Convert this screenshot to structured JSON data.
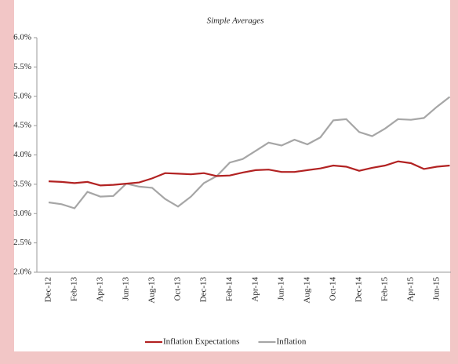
{
  "chart_data": {
    "type": "line",
    "subtitle": "Simple Averages",
    "categories": [
      "Dec-12",
      null,
      "Feb-13",
      null,
      "Apr-13",
      null,
      "Jun-13",
      null,
      "Aug-13",
      null,
      "Oct-13",
      null,
      "Dec-13",
      null,
      "Feb-14",
      null,
      "Apr-14",
      null,
      "Jun-14",
      null,
      "Aug-14",
      null,
      "Oct-14",
      null,
      "Dec-14",
      null,
      "Feb-15",
      null,
      "Apr-15",
      null,
      "Jun-15",
      null
    ],
    "series": [
      {
        "name": "Inflation Expectations",
        "color": "#b22222",
        "values": [
          3.55,
          3.54,
          3.52,
          3.54,
          3.48,
          3.49,
          3.51,
          3.53,
          3.6,
          3.69,
          3.68,
          3.67,
          3.69,
          3.64,
          3.65,
          3.7,
          3.74,
          3.75,
          3.71,
          3.71,
          3.74,
          3.77,
          3.82,
          3.8,
          3.73,
          3.78,
          3.82,
          3.89,
          3.86,
          3.76,
          3.8,
          3.82
        ]
      },
      {
        "name": "Inflation",
        "color": "#a6a6a6",
        "values": [
          3.19,
          3.16,
          3.09,
          3.37,
          3.29,
          3.3,
          3.51,
          3.46,
          3.44,
          3.25,
          3.12,
          3.29,
          3.52,
          3.64,
          3.87,
          3.93,
          4.07,
          4.21,
          4.16,
          4.26,
          4.18,
          4.3,
          4.59,
          4.61,
          4.39,
          4.32,
          4.45,
          4.61,
          4.6,
          4.63,
          4.82,
          4.99
        ]
      }
    ],
    "ylim": [
      2.0,
      6.0
    ],
    "yticks": [
      {
        "value": 2.0,
        "label": "2.0%"
      },
      {
        "value": 2.5,
        "label": "2.5%"
      },
      {
        "value": 3.0,
        "label": "3.0%"
      },
      {
        "value": 3.5,
        "label": "3.5%"
      },
      {
        "value": 4.0,
        "label": "4.0%"
      },
      {
        "value": 4.5,
        "label": "4.5%"
      },
      {
        "value": 5.0,
        "label": "5.0%"
      },
      {
        "value": 5.5,
        "label": "5.5%"
      },
      {
        "value": 6.0,
        "label": "6.0%"
      }
    ],
    "legend": "bottom"
  }
}
